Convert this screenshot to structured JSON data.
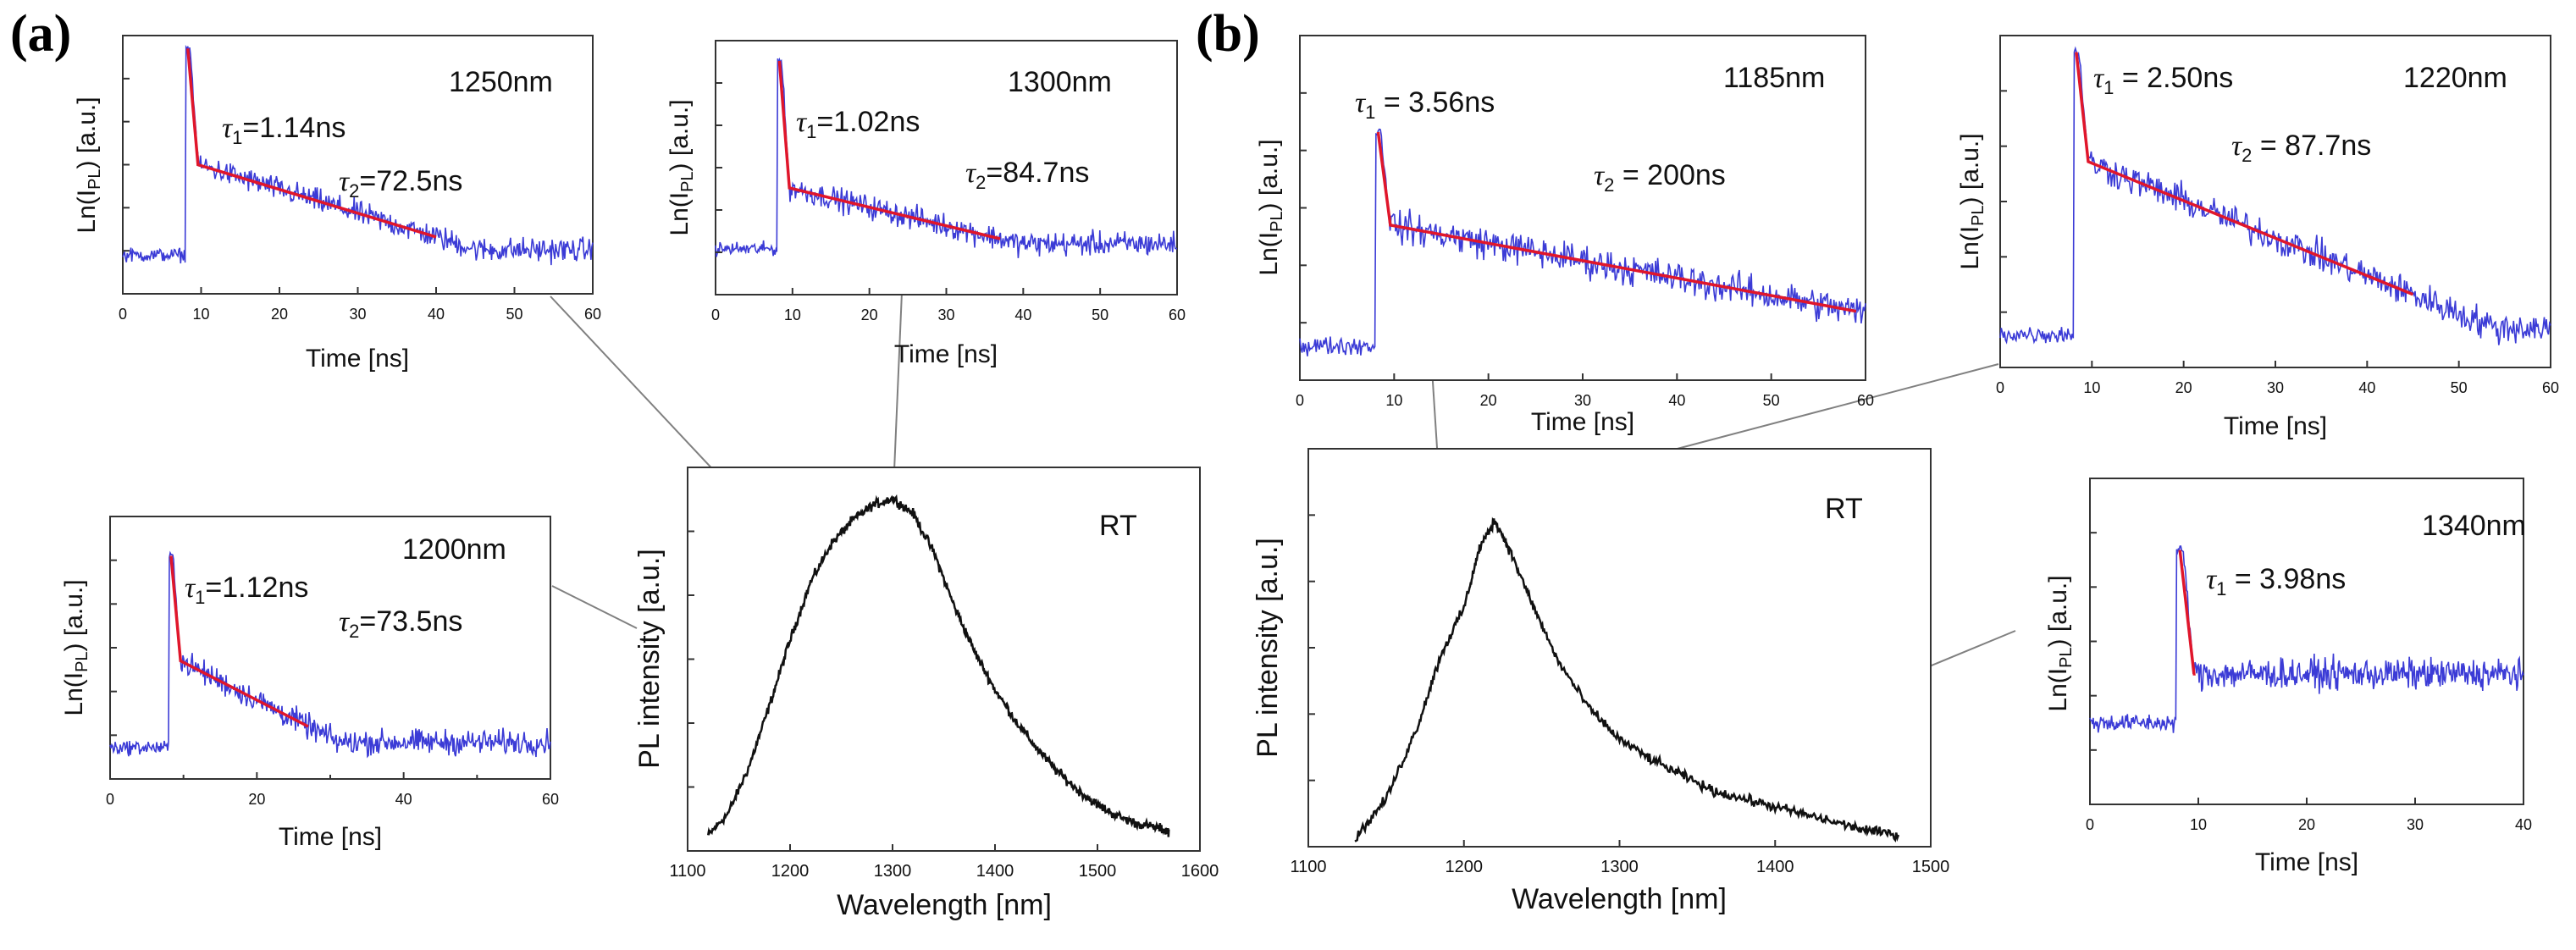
{
  "labels": {
    "a": "(a)",
    "b": "(b)"
  },
  "colors": {
    "decay": "#3b3bd6",
    "fit": "#e0162b",
    "spectrum": "#111111",
    "callout": "#808080"
  },
  "chart_data": [
    {
      "id": "a_spectrum",
      "type": "line",
      "group": "a",
      "xlabel": "Wavelength [nm]",
      "ylabel": "PL intensity [a.u.]",
      "note": "RT",
      "xlim": [
        1100,
        1600
      ],
      "ylim": [
        0,
        1
      ],
      "xticks": [
        "1100",
        "1200",
        "1300",
        "1400",
        "1500",
        "1600"
      ],
      "series": [
        {
          "name": "PL spectrum",
          "x": [
            1120,
            1140,
            1160,
            1180,
            1200,
            1220,
            1240,
            1260,
            1280,
            1300,
            1320,
            1340,
            1360,
            1380,
            1400,
            1420,
            1440,
            1460,
            1480,
            1500,
            1520,
            1540,
            1560,
            1570
          ],
          "y": [
            0.04,
            0.1,
            0.22,
            0.38,
            0.55,
            0.7,
            0.8,
            0.86,
            0.9,
            0.92,
            0.88,
            0.78,
            0.64,
            0.52,
            0.42,
            0.34,
            0.27,
            0.21,
            0.16,
            0.12,
            0.09,
            0.07,
            0.06,
            0.05
          ]
        }
      ]
    },
    {
      "id": "a_1250",
      "type": "line",
      "group": "a",
      "xlabel": "Time [ns]",
      "ylabel": "Ln(I_PL) [a.u.]",
      "ylabel_main": "Ln(I",
      "ylabel_sub": "PL",
      "ylabel_tail": ") [a.u.]",
      "wavelength": "1250nm",
      "tau1": "=1.14ns",
      "tau2": "=72.5ns",
      "xlim": [
        0,
        60
      ],
      "xticks": [
        "0",
        "10",
        "20",
        "30",
        "40",
        "50",
        "60"
      ],
      "onset": 8,
      "fit_end": 40,
      "base_level": 0.15,
      "peak_level": 0.95,
      "knee_level": 0.5,
      "end_level": 0.22
    },
    {
      "id": "a_1300",
      "type": "line",
      "group": "a",
      "xlabel": "Time [ns]",
      "ylabel": "Ln(I_PL) [a.u.]",
      "ylabel_main": "Ln(I",
      "ylabel_sub": "PL",
      "ylabel_tail": ") [a.u.]",
      "wavelength": "1300nm",
      "tau1": "=1.02ns",
      "tau2": "=84.7ns",
      "xlim": [
        0,
        60
      ],
      "xticks": [
        "0",
        "10",
        "20",
        "30",
        "40",
        "50",
        "60"
      ],
      "onset": 8,
      "fit_end": 37,
      "base_level": 0.18,
      "peak_level": 0.92,
      "knee_level": 0.42,
      "end_level": 0.22
    },
    {
      "id": "a_1200",
      "type": "line",
      "group": "a",
      "xlabel": "Time [ns]",
      "ylabel": "Ln(I_PL) [a.u.]",
      "ylabel_main": "Ln(I",
      "ylabel_sub": "PL",
      "ylabel_tail": ") [a.u.]",
      "wavelength": "1200nm",
      "tau1": "=1.12ns",
      "tau2": "=73.5ns",
      "xlim": [
        0,
        60
      ],
      "xticks": [
        "0",
        "20",
        "40",
        "60"
      ],
      "minor": [
        10,
        30,
        50
      ],
      "onset": 8,
      "fit_end": 27,
      "base_level": 0.12,
      "peak_level": 0.85,
      "knee_level": 0.45,
      "end_level": 0.2
    },
    {
      "id": "b_spectrum",
      "type": "line",
      "group": "b",
      "xlabel": "Wavelength [nm]",
      "ylabel": "PL intensity [a.u.]",
      "note": "RT",
      "xlim": [
        1100,
        1500
      ],
      "ylim": [
        0,
        1
      ],
      "xticks": [
        "1100",
        "1200",
        "1300",
        "1400",
        "1500"
      ],
      "series": [
        {
          "name": "PL spectrum",
          "x": [
            1130,
            1150,
            1170,
            1185,
            1200,
            1210,
            1220,
            1230,
            1245,
            1260,
            1280,
            1300,
            1320,
            1340,
            1360,
            1380,
            1400,
            1420,
            1440,
            1460,
            1480
          ],
          "y": [
            0.02,
            0.12,
            0.3,
            0.48,
            0.6,
            0.75,
            0.82,
            0.74,
            0.6,
            0.47,
            0.35,
            0.27,
            0.22,
            0.18,
            0.14,
            0.12,
            0.1,
            0.08,
            0.06,
            0.04,
            0.03
          ]
        }
      ]
    },
    {
      "id": "b_1185",
      "type": "line",
      "group": "b",
      "xlabel": "Time [ns]",
      "ylabel": "Ln(I_PL) [a.u.]",
      "ylabel_main": "Ln(I",
      "ylabel_sub": "PL",
      "ylabel_tail": ") [a.u.]",
      "wavelength": "1185nm",
      "tau1": " = 3.56ns",
      "tau2": " = 200ns",
      "xlim": [
        0,
        60
      ],
      "xticks": [
        "0",
        "10",
        "20",
        "30",
        "40",
        "50",
        "60"
      ],
      "onset": 8,
      "fit_end": 59,
      "base_level": 0.1,
      "peak_level": 0.72,
      "knee_level": 0.45,
      "end_level": 0.2
    },
    {
      "id": "b_1220",
      "type": "line",
      "group": "b",
      "xlabel": "Time [ns]",
      "ylabel": "Ln(I_PL) [a.u.]",
      "ylabel_main": "Ln(I",
      "ylabel_sub": "PL",
      "ylabel_tail": ") [a.u.]",
      "wavelength": "1220nm",
      "tau1": " = 2.50ns",
      "tau2": " = 87.7ns",
      "xlim": [
        0,
        60
      ],
      "xticks": [
        "0",
        "10",
        "20",
        "30",
        "40",
        "50",
        "60"
      ],
      "onset": 8,
      "fit_end": 45,
      "base_level": 0.1,
      "peak_level": 0.95,
      "knee_level": 0.62,
      "end_level": 0.22
    },
    {
      "id": "b_1340",
      "type": "line",
      "group": "b",
      "xlabel": "Time [ns]",
      "ylabel": "Ln(I_PL) [a.u.]",
      "ylabel_main": "Ln(I",
      "ylabel_sub": "PL",
      "ylabel_tail": ") [a.u.]",
      "wavelength": "1340nm",
      "tau1": " = 3.98ns",
      "xlim": [
        0,
        40
      ],
      "xticks": [
        "0",
        "10",
        "20",
        "30",
        "40"
      ],
      "onset": 8,
      "fit_end": 9.5,
      "base_level": 0.25,
      "peak_level": 0.78,
      "knee_level": 0.4,
      "end_level": 0.4
    }
  ]
}
